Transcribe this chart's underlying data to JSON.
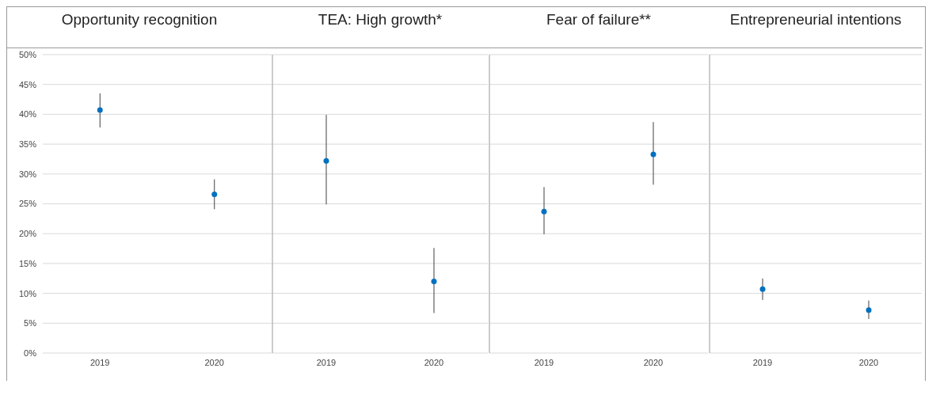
{
  "chart_data": [
    {
      "type": "scatter",
      "title": "Opportunity recognition",
      "categories": [
        "2019",
        "2020"
      ],
      "values": [
        40.7,
        26.6
      ],
      "errors": [
        [
          37.8,
          43.5
        ],
        [
          24.1,
          29.1
        ]
      ],
      "color": "#0070c0",
      "marker": "circle",
      "grid": "y",
      "ylim": [
        0,
        50
      ],
      "yticks": [
        {
          "value": 0,
          "label": "0%"
        },
        {
          "value": 5,
          "label": "5%"
        },
        {
          "value": 10,
          "label": "10%"
        },
        {
          "value": 15,
          "label": "15%"
        },
        {
          "value": 20,
          "label": "20%"
        },
        {
          "value": 25,
          "label": "25%"
        },
        {
          "value": 30,
          "label": "30%"
        },
        {
          "value": 35,
          "label": "35%"
        },
        {
          "value": 40,
          "label": "40%"
        },
        {
          "value": 45,
          "label": "45%"
        },
        {
          "value": 50,
          "label": "50%"
        }
      ]
    },
    {
      "type": "scatter",
      "title": "TEA: High growth*",
      "categories": [
        "2019",
        "2020"
      ],
      "values": [
        32.2,
        12.0
      ],
      "errors": [
        [
          24.9,
          39.9
        ],
        [
          6.7,
          17.6
        ]
      ],
      "color": "#0070c0",
      "marker": "circle",
      "grid": "y",
      "tick_labels": "x",
      "ylim": [
        0,
        50
      ],
      "yticks": [
        0,
        5,
        10,
        15,
        20,
        25,
        30,
        35,
        40,
        45,
        50
      ]
    },
    {
      "type": "scatter",
      "title": "Fear of failure**",
      "categories": [
        "2019",
        "2020"
      ],
      "values": [
        23.7,
        33.3
      ],
      "errors": [
        [
          19.9,
          27.8
        ],
        [
          28.2,
          38.7
        ]
      ],
      "color": "#0070c0",
      "marker": "circle",
      "grid": "y",
      "tick_labels": "x",
      "ylim": [
        0,
        50
      ],
      "yticks": [
        0,
        5,
        10,
        15,
        20,
        25,
        30,
        35,
        40,
        45,
        50
      ]
    },
    {
      "type": "scatter",
      "title": "Entrepreneurial intentions",
      "categories": [
        "2019",
        "2020"
      ],
      "values": [
        10.7,
        7.2
      ],
      "errors": [
        [
          8.9,
          12.5
        ],
        [
          5.7,
          8.8
        ]
      ],
      "color": "#0070c0",
      "marker": "circle",
      "grid": "y",
      "tick_labels": "x",
      "ylim": [
        0,
        50
      ],
      "yticks": [
        0,
        5,
        10,
        15,
        20,
        25,
        30,
        35,
        40,
        45,
        50
      ]
    }
  ]
}
